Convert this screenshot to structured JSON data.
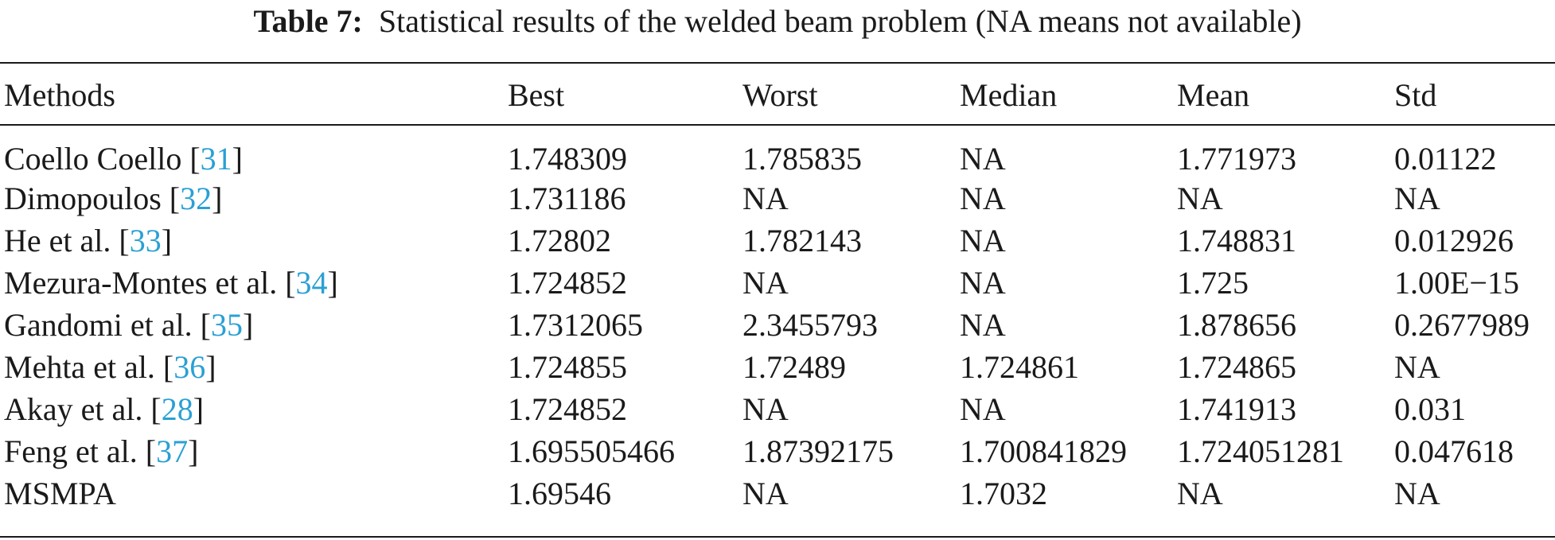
{
  "caption": {
    "label": "Table 7:",
    "text": "Statistical results of the welded beam problem (NA means not available)"
  },
  "table": {
    "headers": [
      "Methods",
      "Best",
      "Worst",
      "Median",
      "Mean",
      "Std"
    ],
    "rows": [
      {
        "method": "Coello Coello",
        "ref": "31",
        "best": "1.748309",
        "worst": "1.785835",
        "median": "NA",
        "mean": "1.771973",
        "std": "0.01122"
      },
      {
        "method": "Dimopoulos",
        "ref": "32",
        "best": "1.731186",
        "worst": "NA",
        "median": "NA",
        "mean": "NA",
        "std": "NA"
      },
      {
        "method": "He et al.",
        "ref": "33",
        "best": "1.72802",
        "worst": "1.782143",
        "median": "NA",
        "mean": "1.748831",
        "std": "0.012926"
      },
      {
        "method": "Mezura-Montes et al.",
        "ref": "34",
        "best": "1.724852",
        "worst": "NA",
        "median": "NA",
        "mean": "1.725",
        "std": "1.00E−15"
      },
      {
        "method": "Gandomi et al.",
        "ref": "35",
        "best": "1.7312065",
        "worst": "2.3455793",
        "median": "NA",
        "mean": "1.878656",
        "std": "0.2677989"
      },
      {
        "method": "Mehta et al.",
        "ref": "36",
        "best": "1.724855",
        "worst": "1.72489",
        "median": "1.724861",
        "mean": "1.724865",
        "std": "NA"
      },
      {
        "method": "Akay et al.",
        "ref": "28",
        "best": "1.724852",
        "worst": "NA",
        "median": "NA",
        "mean": "1.741913",
        "std": "0.031"
      },
      {
        "method": "Feng et al.",
        "ref": "37",
        "best": "1.695505466",
        "worst": "1.87392175",
        "median": "1.700841829",
        "mean": "1.724051281",
        "std": "0.047618"
      },
      {
        "method": "MSMPA",
        "ref": "",
        "best": "1.69546",
        "worst": "NA",
        "median": "1.7032",
        "mean": "NA",
        "std": "NA"
      }
    ]
  }
}
